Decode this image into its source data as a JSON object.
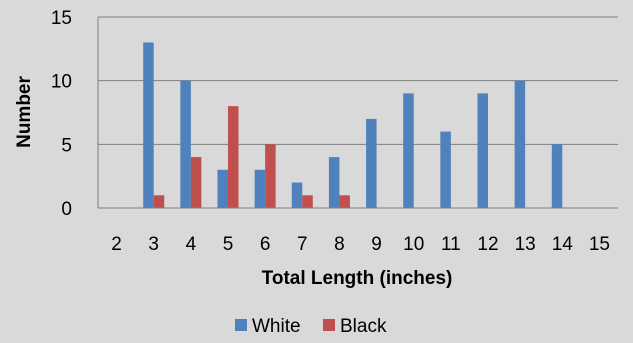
{
  "chart_data": {
    "type": "bar",
    "categories": [
      "2",
      "3",
      "4",
      "5",
      "6",
      "7",
      "8",
      "9",
      "10",
      "11",
      "12",
      "13",
      "14",
      "15"
    ],
    "series": [
      {
        "name": "White",
        "color": "#4f81bd",
        "values": [
          0,
          13,
          10,
          3,
          3,
          2,
          4,
          7,
          9,
          6,
          9,
          10,
          5,
          0
        ]
      },
      {
        "name": "Black",
        "color": "#c0504d",
        "values": [
          0,
          1,
          4,
          8,
          5,
          1,
          1,
          0,
          0,
          0,
          0,
          0,
          0,
          0
        ]
      }
    ],
    "xlabel": "Total Length (inches)",
    "ylabel": "Number",
    "ylim": [
      0,
      15
    ],
    "yticks": [
      "0",
      "5",
      "10",
      "15"
    ],
    "grid": true,
    "legend_position": "bottom"
  }
}
